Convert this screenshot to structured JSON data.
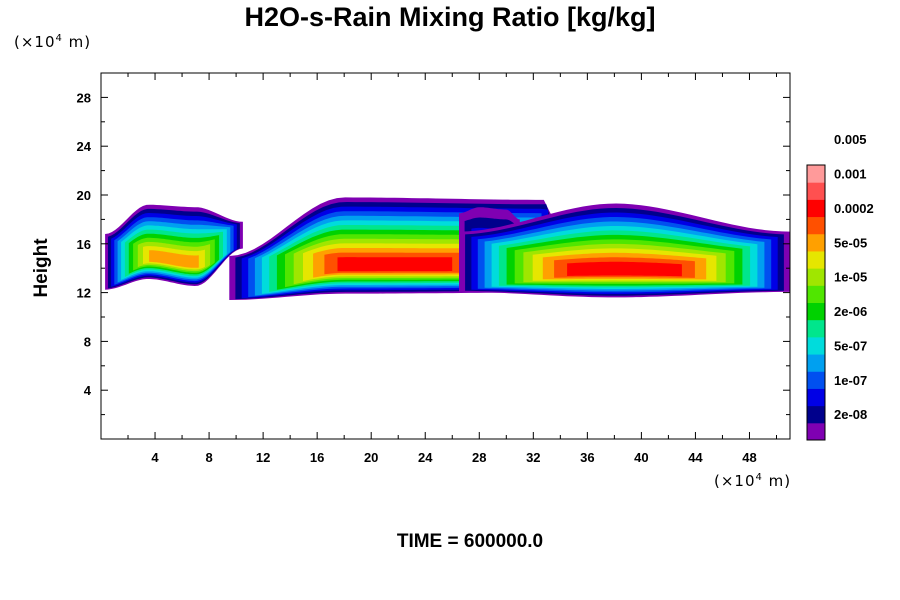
{
  "chart_data": {
    "type": "heatmap",
    "title": "H2O-s-Rain Mixing Ratio [kg/kg]",
    "ylabel": "Height",
    "x_unit": {
      "base": "(×10",
      "exp": "4",
      "tail": " m)"
    },
    "y_unit": {
      "base": "(×10",
      "exp": "4",
      "tail": " m)"
    },
    "footer": "TIME = 600000.0",
    "xlim": [
      0,
      51
    ],
    "ylim": [
      0,
      30
    ],
    "xticks": [
      4,
      8,
      12,
      16,
      20,
      24,
      28,
      32,
      36,
      40,
      44,
      48
    ],
    "yticks": [
      4,
      8,
      12,
      16,
      20,
      24,
      28
    ],
    "colorbar": {
      "levels": [
        "2e-08",
        "1e-07",
        "5e-07",
        "2e-06",
        "1e-05",
        "5e-05",
        "0.0002",
        "0.001",
        "0.005"
      ],
      "colors": [
        "#7f00b2",
        "#00008c",
        "#0000e6",
        "#0050f0",
        "#00a0f0",
        "#00dcdc",
        "#00e68c",
        "#00d200",
        "#50e600",
        "#a0e600",
        "#e6e600",
        "#ffa000",
        "#ff5000",
        "#ff0000",
        "#ff5050",
        "#ff9a9a"
      ]
    },
    "clouds": [
      {
        "x": [
          0.3,
          3.5,
          7,
          10.5
        ],
        "base": [
          12.0,
          12.8,
          12.2,
          15.5
        ],
        "top": [
          16.8,
          19.2,
          19.0,
          17.8
        ],
        "peak_color": 11
      },
      {
        "x": [
          9.5,
          18,
          33,
          34
        ],
        "base": [
          11.2,
          11.5,
          11.6,
          14.5
        ],
        "top": [
          15.0,
          19.8,
          19.6,
          15.5
        ],
        "peak_color": 13
      },
      {
        "x": [
          26.5,
          28,
          30,
          31
        ],
        "base": [
          15.2,
          15.0,
          15.0,
          15.5
        ],
        "top": [
          18.5,
          19.0,
          18.8,
          18.0
        ],
        "peak_color": 2
      },
      {
        "x": [
          26.5,
          38,
          51
        ],
        "base": [
          11.8,
          11.2,
          11.8
        ],
        "top": [
          17.0,
          19.3,
          17.0
        ],
        "peak_color": 13
      }
    ]
  }
}
